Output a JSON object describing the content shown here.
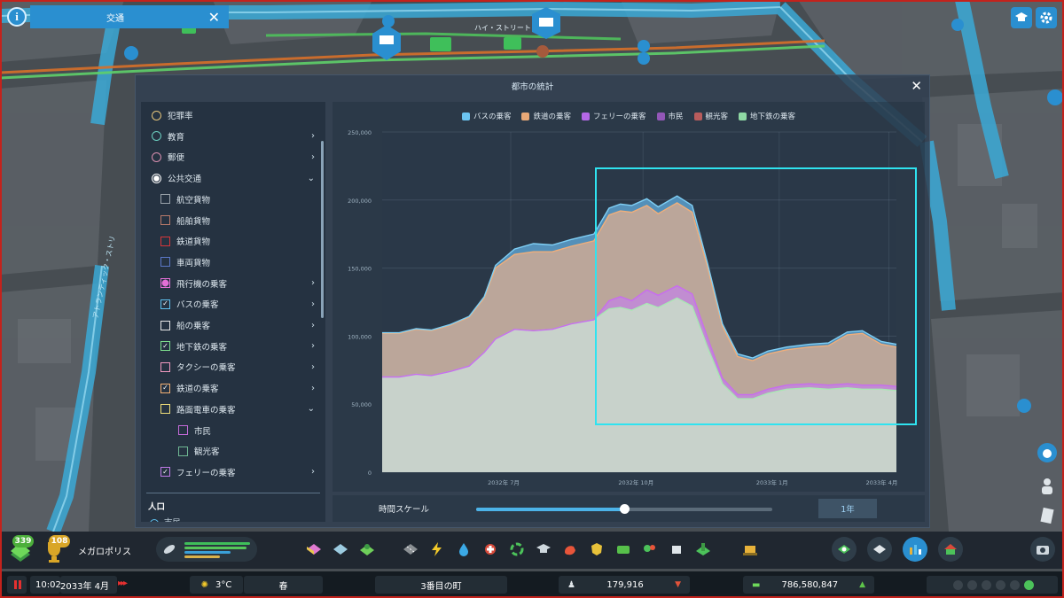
{
  "top_panel": {
    "title": "交通"
  },
  "map_labels": {
    "street_top": "ハイ・ストリート",
    "street_left": "アトランティック・ストリ"
  },
  "stats": {
    "window_title": "都市の統計",
    "items": [
      {
        "label": "犯罪率",
        "kind": "radio",
        "color": "#e7c57a",
        "selected": false,
        "chevron": ""
      },
      {
        "label": "教育",
        "kind": "radio",
        "color": "#6ccfc0",
        "selected": false,
        "chevron": "›"
      },
      {
        "label": "郵便",
        "kind": "radio",
        "color": "#d98fb0",
        "selected": false,
        "chevron": "›"
      },
      {
        "label": "公共交通",
        "kind": "radio",
        "color": "#ffffff",
        "selected": true,
        "chevron": "⌄"
      },
      {
        "label": "航空貨物",
        "kind": "check",
        "color": "#9aa3aa",
        "checked": false,
        "chevron": "",
        "indent": 1
      },
      {
        "label": "船舶貨物",
        "kind": "check",
        "color": "#b97a6a",
        "checked": false,
        "chevron": "",
        "indent": 1
      },
      {
        "label": "鉄道貨物",
        "kind": "check",
        "color": "#d8363a",
        "checked": false,
        "chevron": "",
        "indent": 1
      },
      {
        "label": "車両貨物",
        "kind": "check",
        "color": "#5b78c8",
        "checked": false,
        "chevron": "",
        "indent": 1
      },
      {
        "label": "飛行機の乗客",
        "kind": "check",
        "color": "#e36fd6",
        "checked": false,
        "filled": true,
        "chevron": "›",
        "indent": 1
      },
      {
        "label": "バスの乗客",
        "kind": "check",
        "color": "#5ec0ef",
        "checked": true,
        "chevron": "›",
        "indent": 1
      },
      {
        "label": "船の乗客",
        "kind": "check",
        "color": "#e8e8e8",
        "checked": false,
        "chevron": "›",
        "indent": 1
      },
      {
        "label": "地下鉄の乗客",
        "kind": "check",
        "color": "#7ee08e",
        "checked": true,
        "chevron": "›",
        "indent": 1
      },
      {
        "label": "タクシーの乗客",
        "kind": "check",
        "color": "#f29ac0",
        "checked": false,
        "chevron": "›",
        "indent": 1
      },
      {
        "label": "鉄道の乗客",
        "kind": "check",
        "color": "#f3b073",
        "checked": true,
        "chevron": "›",
        "indent": 1
      },
      {
        "label": "路面電車の乗客",
        "kind": "check",
        "color": "#f2e07a",
        "checked": false,
        "chevron": "⌄",
        "indent": 1
      },
      {
        "label": "市民",
        "kind": "check",
        "color": "#c46ad8",
        "checked": false,
        "chevron": "",
        "indent": 2
      },
      {
        "label": "観光客",
        "kind": "check",
        "color": "#6fb793",
        "checked": false,
        "chevron": "",
        "indent": 2
      },
      {
        "label": "フェリーの乗客",
        "kind": "check",
        "color": "#c07ae8",
        "checked": true,
        "chevron": "›",
        "indent": 1
      }
    ],
    "section_population": "人口",
    "partial_row": "市民",
    "time_scale_label": "時間スケール",
    "time_scale_value": "1年",
    "time_scale_position": 0.5
  },
  "chart_data": {
    "type": "area",
    "stacked": true,
    "x": [
      "2032-04",
      "2032-05",
      "2032-06",
      "2032-07",
      "2032-08",
      "2032-09",
      "2032-10",
      "2032-11",
      "2032-12",
      "2033-01",
      "2033-02",
      "2033-03",
      "2033-04"
    ],
    "x_tick_labels": [
      "2032年 7月",
      "2032年 10月",
      "2033年 1月",
      "2033年 4月"
    ],
    "ylim": [
      0,
      250000
    ],
    "y_tick_labels": [
      "0",
      "50,000",
      "100,000",
      "150,000",
      "200,000",
      "250,000"
    ],
    "legend": [
      "バスの乗客",
      "鉄道の乗客",
      "フェリーの乗客",
      "市民",
      "観光客",
      "地下鉄の乗客"
    ],
    "legend_colors": [
      "#6cc4f0",
      "#e8a877",
      "#b468e6",
      "#9357b8",
      "#b85c5c",
      "#8fd9a4"
    ],
    "series": [
      {
        "name": "地下鉄の乗客",
        "color": "#c8dcc9",
        "points": [
          [
            0,
            70000
          ],
          [
            0.45,
            70000
          ],
          [
            0.9,
            72000
          ],
          [
            1.3,
            71000
          ],
          [
            1.8,
            74000
          ],
          [
            2.3,
            78000
          ],
          [
            2.7,
            88000
          ],
          [
            3.0,
            98000
          ],
          [
            3.5,
            105000
          ],
          [
            4.0,
            104000
          ],
          [
            4.5,
            105000
          ],
          [
            5.0,
            109000
          ],
          [
            5.6,
            112000
          ],
          [
            6.0,
            120000
          ],
          [
            6.3,
            121000
          ],
          [
            6.6,
            119000
          ],
          [
            7.0,
            124000
          ],
          [
            7.3,
            121000
          ],
          [
            7.8,
            128000
          ],
          [
            8.2,
            122000
          ],
          [
            8.6,
            92000
          ],
          [
            9.0,
            65000
          ],
          [
            9.4,
            54000
          ],
          [
            9.8,
            54000
          ],
          [
            10.2,
            58000
          ],
          [
            10.7,
            61000
          ],
          [
            11.3,
            62000
          ],
          [
            11.8,
            61000
          ],
          [
            12.3,
            62000
          ],
          [
            12.7,
            61000
          ],
          [
            13.2,
            61000
          ],
          [
            13.6,
            60000
          ]
        ]
      },
      {
        "name": "フェリーの乗客",
        "color": "#c28ad8",
        "points": [
          [
            0,
            0
          ],
          [
            5.6,
            0
          ],
          [
            6.0,
            6000
          ],
          [
            6.3,
            8000
          ],
          [
            6.6,
            7000
          ],
          [
            7.0,
            10000
          ],
          [
            7.3,
            9000
          ],
          [
            7.8,
            9000
          ],
          [
            8.2,
            9000
          ],
          [
            8.6,
            7000
          ],
          [
            9.0,
            4000
          ],
          [
            9.4,
            3000
          ],
          [
            9.8,
            3000
          ],
          [
            10.2,
            3000
          ],
          [
            10.7,
            3000
          ],
          [
            11.3,
            3000
          ],
          [
            11.8,
            3000
          ],
          [
            12.3,
            3000
          ],
          [
            12.7,
            3000
          ],
          [
            13.2,
            3000
          ],
          [
            13.6,
            3000
          ]
        ]
      },
      {
        "name": "鉄道の乗客",
        "color": "#c9a995",
        "points": [
          [
            0,
            32000
          ],
          [
            0.45,
            32000
          ],
          [
            0.9,
            33000
          ],
          [
            1.3,
            33000
          ],
          [
            1.8,
            34000
          ],
          [
            2.3,
            36000
          ],
          [
            2.7,
            40000
          ],
          [
            3.0,
            52000
          ],
          [
            3.5,
            55000
          ],
          [
            4.0,
            58000
          ],
          [
            4.5,
            57000
          ],
          [
            5.0,
            57000
          ],
          [
            5.6,
            58000
          ],
          [
            6.0,
            63000
          ],
          [
            6.3,
            63000
          ],
          [
            6.6,
            65000
          ],
          [
            7.0,
            62000
          ],
          [
            7.3,
            60000
          ],
          [
            7.8,
            61000
          ],
          [
            8.2,
            60000
          ],
          [
            8.6,
            52000
          ],
          [
            9.0,
            38000
          ],
          [
            9.4,
            28000
          ],
          [
            9.8,
            25000
          ],
          [
            10.2,
            26000
          ],
          [
            10.7,
            26000
          ],
          [
            11.3,
            27000
          ],
          [
            11.8,
            29000
          ],
          [
            12.3,
            36000
          ],
          [
            12.7,
            38000
          ],
          [
            13.2,
            30000
          ],
          [
            13.6,
            29000
          ]
        ]
      },
      {
        "name": "バスの乗客",
        "color": "#5a9cc8",
        "points": [
          [
            0,
            500
          ],
          [
            0.45,
            500
          ],
          [
            0.9,
            500
          ],
          [
            1.3,
            500
          ],
          [
            1.8,
            500
          ],
          [
            2.3,
            500
          ],
          [
            2.7,
            1000
          ],
          [
            3.0,
            2000
          ],
          [
            3.5,
            4000
          ],
          [
            4.0,
            6000
          ],
          [
            4.5,
            5000
          ],
          [
            5.0,
            5000
          ],
          [
            5.6,
            5000
          ],
          [
            6.0,
            5000
          ],
          [
            6.3,
            5000
          ],
          [
            6.6,
            5000
          ],
          [
            7.0,
            5000
          ],
          [
            7.3,
            5000
          ],
          [
            7.8,
            5000
          ],
          [
            8.2,
            5000
          ],
          [
            8.6,
            3000
          ],
          [
            9.0,
            2000
          ],
          [
            9.4,
            2000
          ],
          [
            9.8,
            2000
          ],
          [
            10.2,
            2000
          ],
          [
            10.7,
            2000
          ],
          [
            11.3,
            2000
          ],
          [
            11.8,
            2000
          ],
          [
            12.3,
            2000
          ],
          [
            12.7,
            2000
          ],
          [
            13.2,
            2000
          ],
          [
            13.6,
            2000
          ]
        ]
      }
    ]
  },
  "toolbar": {
    "level_badge": "339",
    "milestone_badge": "108",
    "city_title": "メガロポリス"
  },
  "status": {
    "time": "10:02",
    "date": "2033年 4月",
    "weather_temp": "3°C",
    "season": "春",
    "city_name": "3番目の町",
    "population": "179,916",
    "money": "786,580,847"
  }
}
